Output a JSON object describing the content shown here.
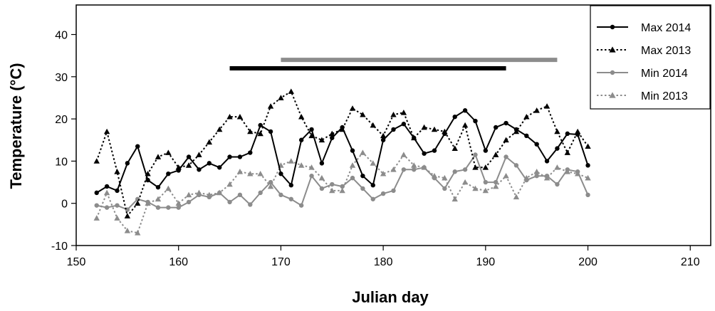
{
  "chart_data": {
    "type": "line",
    "title": "",
    "xlabel": "Julian day",
    "ylabel": "Temperature (°C)",
    "xlim": [
      150,
      212
    ],
    "ylim": [
      -10,
      47
    ],
    "xticks": [
      150,
      160,
      170,
      180,
      190,
      200,
      210
    ],
    "yticks": [
      -10,
      0,
      10,
      20,
      30,
      40
    ],
    "grid": false,
    "legend_position": "top-right",
    "series": [
      {
        "name": "Max 2014",
        "color": "#000000",
        "style": "solid",
        "marker": "circle",
        "x": [
          152,
          153,
          154,
          155,
          156,
          157,
          158,
          159,
          160,
          161,
          162,
          163,
          164,
          165,
          166,
          167,
          168,
          169,
          170,
          171,
          172,
          173,
          174,
          175,
          176,
          177,
          178,
          179,
          180,
          181,
          182,
          183,
          184,
          185,
          186,
          187,
          188,
          189,
          190,
          191,
          192,
          193,
          194,
          195,
          196,
          197,
          198,
          199,
          200
        ],
        "values": [
          2.5,
          4,
          3,
          9.5,
          13.5,
          5.5,
          3.8,
          7,
          7.8,
          11,
          8,
          9.5,
          8.5,
          11,
          11,
          12,
          18.5,
          17,
          7,
          4.3,
          15,
          17.5,
          9.5,
          15.5,
          18,
          12.5,
          6.5,
          4.3,
          15,
          17.5,
          18.8,
          15.5,
          11.8,
          12.5,
          16.5,
          20.5,
          22,
          19.5,
          12.5,
          18,
          19,
          17.5,
          16,
          14,
          10,
          13,
          16.5,
          16.3,
          9
        ]
      },
      {
        "name": "Max 2013",
        "color": "#000000",
        "style": "dotted",
        "marker": "triangle",
        "x": [
          152,
          153,
          154,
          155,
          156,
          157,
          158,
          159,
          160,
          161,
          162,
          163,
          164,
          165,
          166,
          167,
          168,
          169,
          170,
          171,
          172,
          173,
          174,
          175,
          176,
          177,
          178,
          179,
          180,
          181,
          182,
          183,
          184,
          185,
          186,
          187,
          188,
          189,
          190,
          191,
          192,
          193,
          194,
          195,
          196,
          197,
          198,
          199,
          200
        ],
        "values": [
          10,
          17,
          7.5,
          -3,
          0,
          7,
          11,
          12,
          8.5,
          9,
          11.5,
          14.5,
          17.5,
          20.5,
          20.5,
          17,
          16.5,
          23,
          25,
          26.5,
          20.5,
          16,
          15,
          16.5,
          17.5,
          22.5,
          21,
          18.5,
          16,
          21,
          21.5,
          15.5,
          18,
          17.5,
          17,
          13,
          18.5,
          8.5,
          8.5,
          11.5,
          15,
          17,
          20.5,
          22,
          23,
          17,
          12,
          17,
          13.5
        ]
      },
      {
        "name": "Min 2014",
        "color": "#8c8c8c",
        "style": "solid",
        "marker": "circle",
        "x": [
          152,
          153,
          154,
          155,
          156,
          157,
          158,
          159,
          160,
          161,
          162,
          163,
          164,
          165,
          166,
          167,
          168,
          169,
          170,
          171,
          172,
          173,
          174,
          175,
          176,
          177,
          178,
          179,
          180,
          181,
          182,
          183,
          184,
          185,
          186,
          187,
          188,
          189,
          190,
          191,
          192,
          193,
          194,
          195,
          196,
          197,
          198,
          199,
          200
        ],
        "values": [
          -0.5,
          -1,
          -0.5,
          -1.5,
          1,
          0.3,
          -1,
          -1,
          -1,
          0.3,
          2,
          1.5,
          2.5,
          0.3,
          2,
          -0.3,
          2.5,
          5,
          2,
          1,
          -0.5,
          6.5,
          3.5,
          4.5,
          4,
          6,
          3.5,
          1,
          2.3,
          3,
          8,
          8,
          8.5,
          6,
          3.5,
          7.5,
          8,
          11.5,
          5,
          5,
          11,
          9,
          5.5,
          6.5,
          6.5,
          4.5,
          8,
          7.5,
          2
        ]
      },
      {
        "name": "Min 2013",
        "color": "#8c8c8c",
        "style": "dotted",
        "marker": "triangle",
        "x": [
          152,
          153,
          154,
          155,
          156,
          157,
          158,
          159,
          160,
          161,
          162,
          163,
          164,
          165,
          166,
          167,
          168,
          169,
          170,
          171,
          172,
          173,
          174,
          175,
          176,
          177,
          178,
          179,
          180,
          181,
          182,
          183,
          184,
          185,
          186,
          187,
          188,
          189,
          190,
          191,
          192,
          193,
          194,
          195,
          196,
          197,
          198,
          199,
          200
        ],
        "values": [
          -3.5,
          2.5,
          -3.5,
          -6.5,
          -7,
          0,
          1,
          3.5,
          0,
          2,
          2.5,
          2,
          2.5,
          4.5,
          7.5,
          7,
          7,
          4,
          9,
          10,
          9,
          8.5,
          6,
          3,
          3,
          9,
          12,
          9.5,
          7,
          8,
          11.5,
          9,
          8.5,
          6.5,
          6,
          1,
          5,
          3.5,
          3,
          4,
          6.5,
          1.5,
          6,
          7.5,
          6,
          8.5,
          7.5,
          7,
          6
        ]
      }
    ],
    "bars": [
      {
        "color": "#000000",
        "x_start": 165,
        "x_end": 192,
        "y": 32
      },
      {
        "color": "#8c8c8c",
        "x_start": 170,
        "x_end": 197,
        "y": 34
      }
    ]
  }
}
